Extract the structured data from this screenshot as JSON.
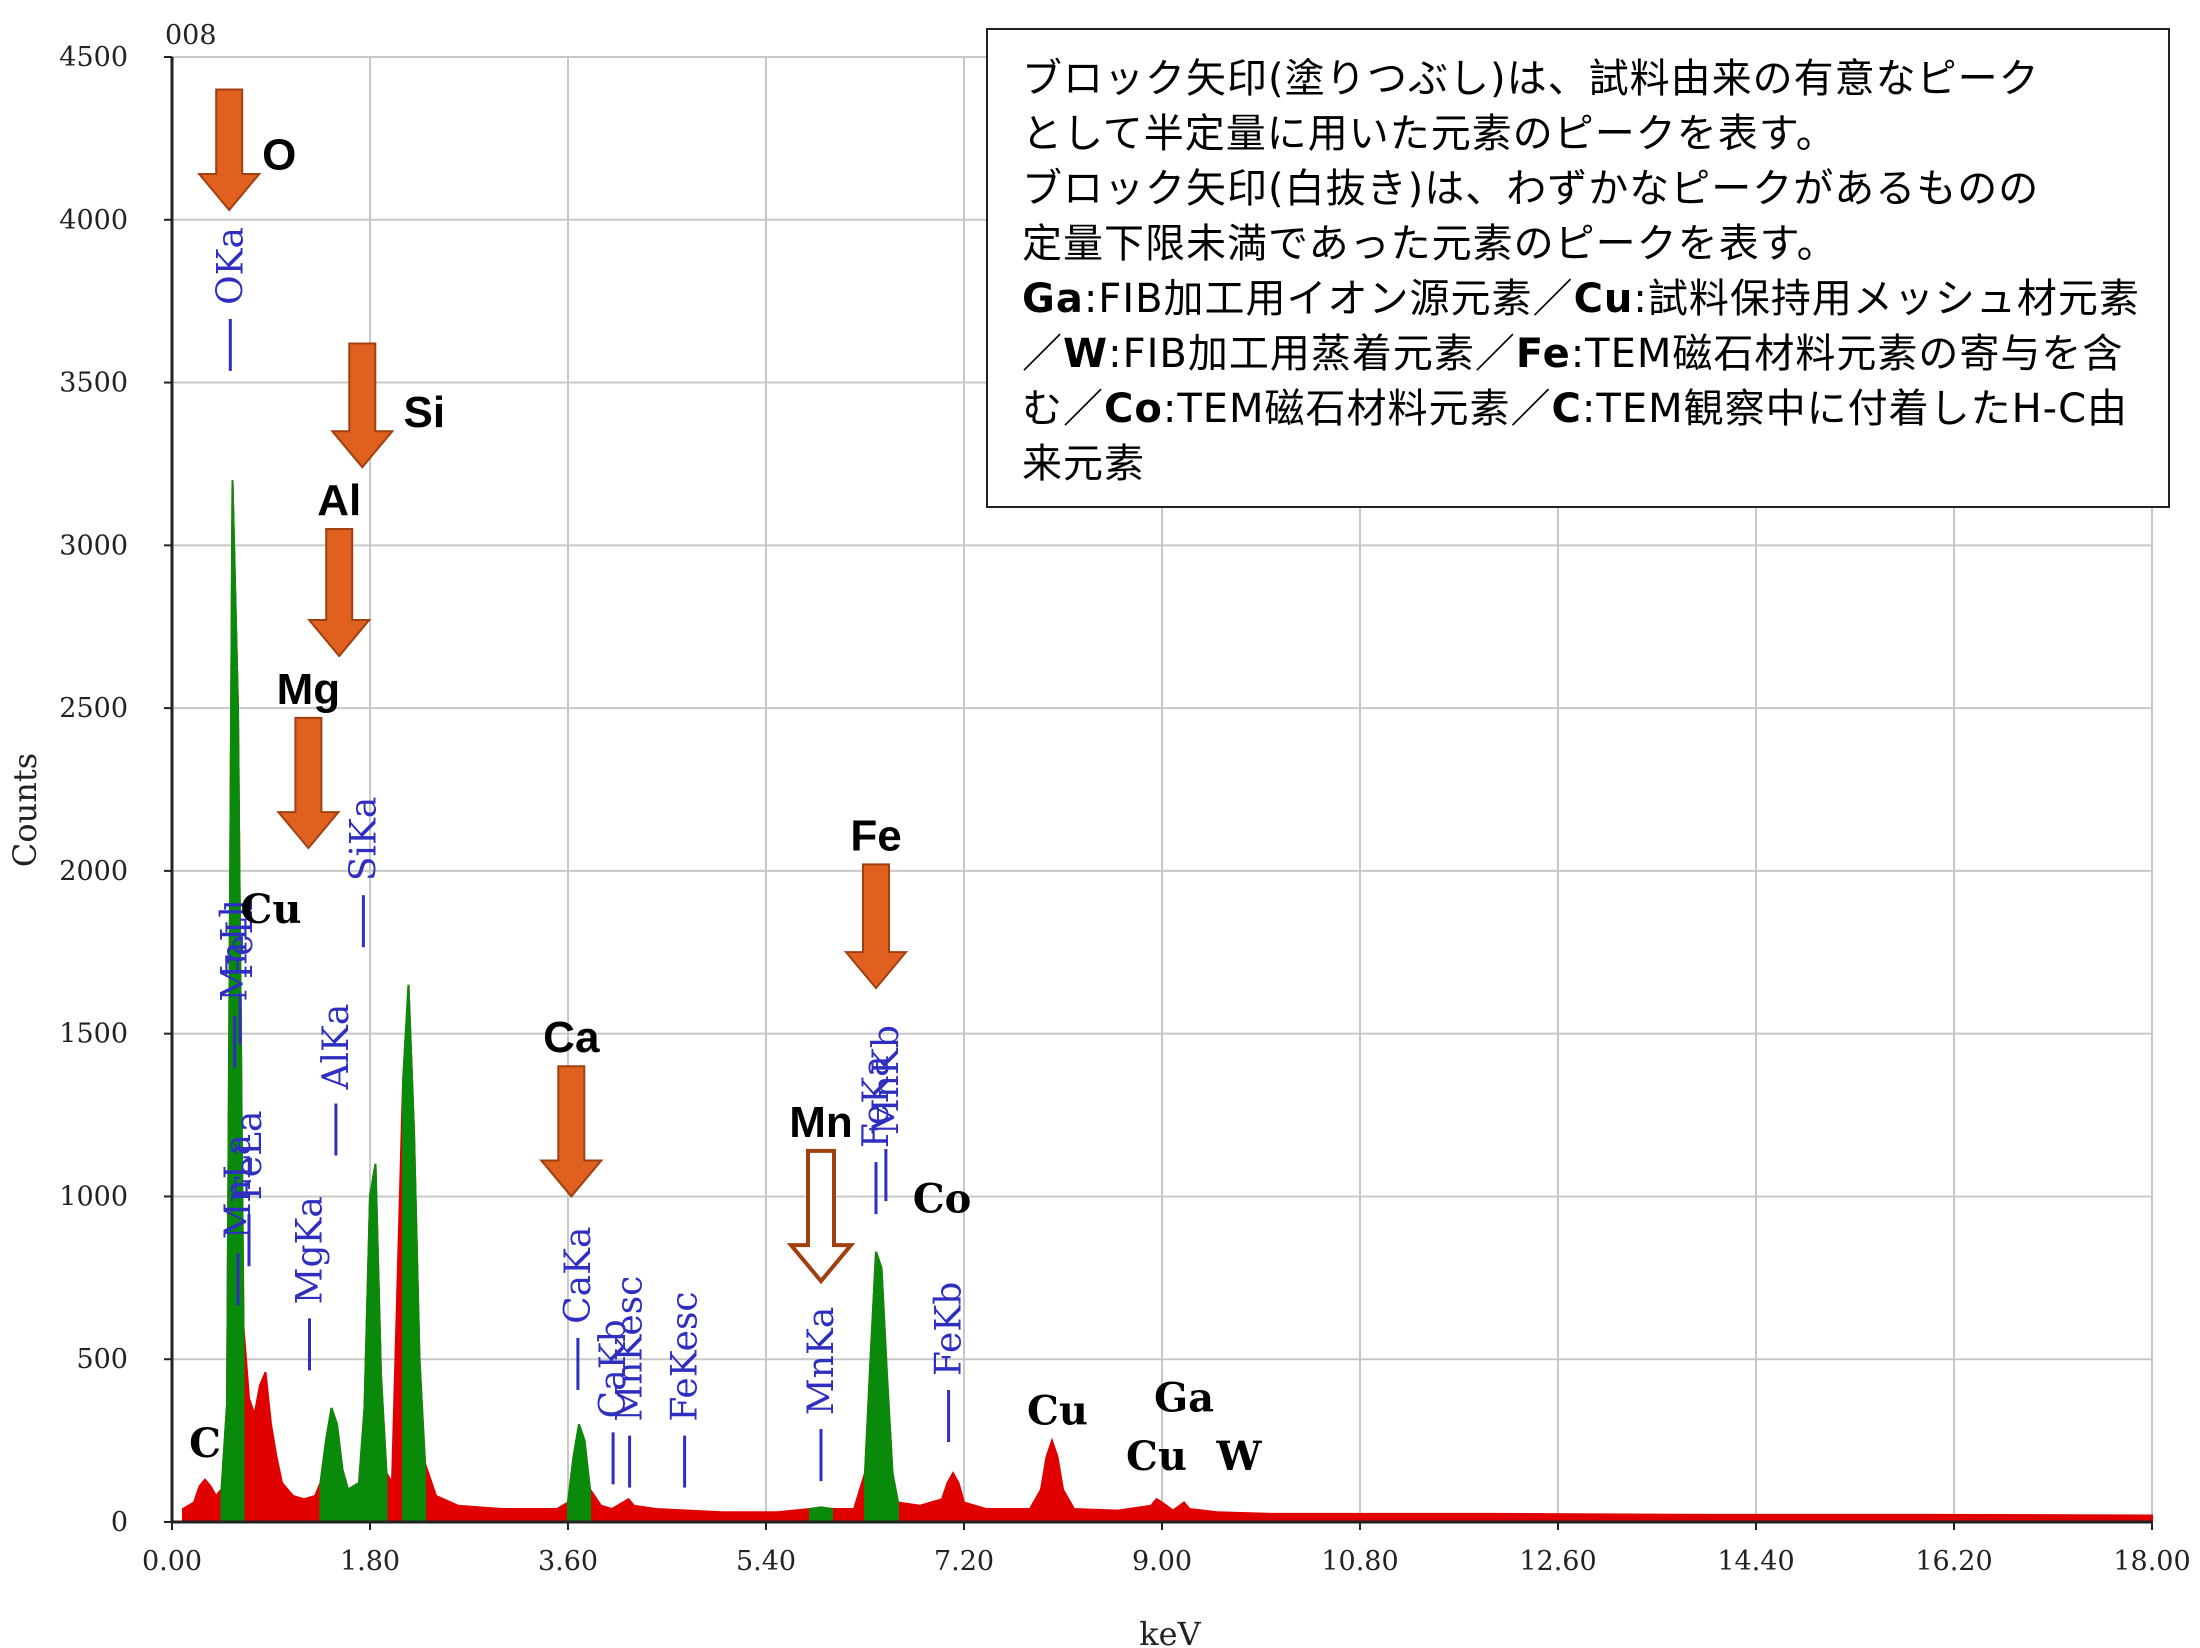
{
  "chart_data": {
    "type": "area",
    "corner_label": "008",
    "xlabel": "keV",
    "ylabel": "Counts",
    "xlim": [
      0,
      18
    ],
    "ylim": [
      0,
      4500
    ],
    "x_ticks": [
      "0.00",
      "1.80",
      "3.60",
      "5.40",
      "7.20",
      "9.00",
      "10.80",
      "12.60",
      "14.40",
      "16.20",
      "18.00"
    ],
    "y_ticks": [
      "0",
      "500",
      "1000",
      "1500",
      "2000",
      "2500",
      "3000",
      "3500",
      "4000",
      "4500"
    ],
    "grid": true,
    "colors": {
      "background_spectrum": "#e00000",
      "highlight_spectrum": "#0a8a0a",
      "line_marker": "#2e2ec0",
      "arrow": "#e0601f",
      "arrow_outline": "#a04010"
    },
    "series": [
      {
        "name": "",
        "points": [
          [
            0.1,
            40
          ],
          [
            0.2,
            60
          ],
          [
            0.25,
            110
          ],
          [
            0.3,
            130
          ],
          [
            0.35,
            110
          ],
          [
            0.4,
            80
          ],
          [
            0.45,
            100
          ],
          [
            0.5,
            360
          ],
          [
            0.55,
            3200
          ],
          [
            0.6,
            2500
          ],
          [
            0.65,
            600
          ],
          [
            0.7,
            380
          ],
          [
            0.75,
            330
          ],
          [
            0.8,
            420
          ],
          [
            0.85,
            460
          ],
          [
            0.9,
            300
          ],
          [
            0.95,
            200
          ],
          [
            1.0,
            120
          ],
          [
            1.1,
            80
          ],
          [
            1.2,
            70
          ],
          [
            1.3,
            80
          ],
          [
            1.35,
            120
          ],
          [
            1.4,
            250
          ],
          [
            1.45,
            350
          ],
          [
            1.5,
            300
          ],
          [
            1.55,
            160
          ],
          [
            1.6,
            100
          ],
          [
            1.7,
            120
          ],
          [
            1.75,
            350
          ],
          [
            1.8,
            1000
          ],
          [
            1.85,
            1100
          ],
          [
            1.9,
            450
          ],
          [
            1.95,
            150
          ],
          [
            2.0,
            120
          ],
          [
            2.1,
            1350
          ],
          [
            2.15,
            1650
          ],
          [
            2.2,
            1200
          ],
          [
            2.25,
            500
          ],
          [
            2.3,
            180
          ],
          [
            2.4,
            80
          ],
          [
            2.6,
            50
          ],
          [
            3.0,
            40
          ],
          [
            3.5,
            40
          ],
          [
            3.6,
            60
          ],
          [
            3.65,
            200
          ],
          [
            3.7,
            300
          ],
          [
            3.75,
            250
          ],
          [
            3.8,
            100
          ],
          [
            3.9,
            50
          ],
          [
            4.0,
            40
          ],
          [
            4.1,
            60
          ],
          [
            4.15,
            70
          ],
          [
            4.2,
            50
          ],
          [
            4.4,
            40
          ],
          [
            5.0,
            30
          ],
          [
            5.5,
            30
          ],
          [
            5.8,
            40
          ],
          [
            5.9,
            45
          ],
          [
            6.0,
            40
          ],
          [
            6.2,
            40
          ],
          [
            6.3,
            150
          ],
          [
            6.35,
            500
          ],
          [
            6.4,
            830
          ],
          [
            6.45,
            780
          ],
          [
            6.5,
            450
          ],
          [
            6.55,
            150
          ],
          [
            6.6,
            60
          ],
          [
            6.8,
            50
          ],
          [
            7.0,
            70
          ],
          [
            7.05,
            120
          ],
          [
            7.1,
            150
          ],
          [
            7.15,
            120
          ],
          [
            7.2,
            60
          ],
          [
            7.4,
            40
          ],
          [
            7.8,
            40
          ],
          [
            7.9,
            100
          ],
          [
            7.95,
            200
          ],
          [
            8.0,
            250
          ],
          [
            8.05,
            200
          ],
          [
            8.1,
            100
          ],
          [
            8.2,
            40
          ],
          [
            8.6,
            35
          ],
          [
            8.9,
            50
          ],
          [
            8.95,
            70
          ],
          [
            9.0,
            60
          ],
          [
            9.1,
            35
          ],
          [
            9.2,
            60
          ],
          [
            9.25,
            40
          ],
          [
            9.5,
            30
          ],
          [
            10.0,
            25
          ],
          [
            12.0,
            25
          ],
          [
            14.0,
            22
          ],
          [
            16.0,
            22
          ],
          [
            18.0,
            20
          ]
        ]
      }
    ],
    "line_markers": [
      {
        "label": "OKa",
        "x": 0.53,
        "top": 3720
      },
      {
        "label": "MnLl",
        "x": 0.57,
        "top": 1580
      },
      {
        "label": "FeLl",
        "x": 0.62,
        "top": 1650
      },
      {
        "label": "MnLa",
        "x": 0.6,
        "top": 850
      },
      {
        "label": "FeLa",
        "x": 0.7,
        "top": 970
      },
      {
        "label": "MgKa",
        "x": 1.25,
        "top": 650
      },
      {
        "label": "AlKa",
        "x": 1.49,
        "top": 1310
      },
      {
        "label": "SiKa",
        "x": 1.74,
        "top": 1950
      },
      {
        "label": "CaKa",
        "x": 3.69,
        "top": 590
      },
      {
        "label": "CaKb",
        "x": 4.01,
        "top": 300
      },
      {
        "label": "MnKesc",
        "x": 4.16,
        "top": 290
      },
      {
        "label": "FeKesc",
        "x": 4.66,
        "top": 290
      },
      {
        "label": "MnKa",
        "x": 5.9,
        "top": 310
      },
      {
        "label": "MnKb",
        "x": 6.49,
        "top": 1170
      },
      {
        "label": "FeKa",
        "x": 6.4,
        "top": 1130
      },
      {
        "label": "FeKb",
        "x": 7.06,
        "top": 430
      }
    ],
    "element_labels": [
      {
        "label": "C",
        "x": 0.3,
        "y": 200
      },
      {
        "label": "Cu",
        "x": 0.9,
        "y": 1840
      },
      {
        "label": "Co",
        "x": 7.0,
        "y": 950
      },
      {
        "label": "Cu",
        "x": 8.05,
        "y": 300
      },
      {
        "label": "Ga",
        "x": 9.2,
        "y": 340
      },
      {
        "label": "Cu",
        "x": 8.95,
        "y": 160
      },
      {
        "label": "W",
        "x": 9.7,
        "y": 160
      }
    ],
    "arrows": [
      {
        "label": "O",
        "x": 0.52,
        "y_top": 4400,
        "y_tip": 4030,
        "filled": true
      },
      {
        "label": "Si",
        "x": 1.73,
        "y_top": 3620,
        "y_tip": 3240,
        "filled": true
      },
      {
        "label": "Al",
        "x": 1.52,
        "y_top": 3050,
        "y_tip": 2660,
        "filled": true
      },
      {
        "label": "Mg",
        "x": 1.24,
        "y_top": 2470,
        "y_tip": 2070,
        "filled": true
      },
      {
        "label": "Ca",
        "x": 3.63,
        "y_top": 1400,
        "y_tip": 1000,
        "filled": true
      },
      {
        "label": "Mn",
        "x": 5.9,
        "y_top": 1140,
        "y_tip": 740,
        "filled": false
      },
      {
        "label": "Fe",
        "x": 6.4,
        "y_top": 2020,
        "y_tip": 1640,
        "filled": true
      }
    ]
  },
  "legend": {
    "lines": [
      "ブロック矢印(塗りつぶし)は、試料由来の有意なピーク",
      "として半定量に用いた元素のピークを表す。",
      "ブロック矢印(白抜き)は、わずかなピークがあるものの",
      "定量下限未満であった元素のピークを表す。"
    ],
    "items": [
      {
        "element": "Ga",
        "text": ":FIB加工用イオン源元素／"
      },
      {
        "element": "Cu",
        "text": ":試料保持用メッシュ材元素／"
      },
      {
        "element": "W",
        "text": ":FIB加工用蒸着元素／"
      },
      {
        "element": "Fe",
        "text": ":TEM磁石材料元素の寄与を含む／"
      },
      {
        "element": "Co",
        "text": ":TEM磁石材料元素／"
      },
      {
        "element": "C",
        "text": ":TEM観察中に付着したH-C由来元素"
      }
    ]
  }
}
